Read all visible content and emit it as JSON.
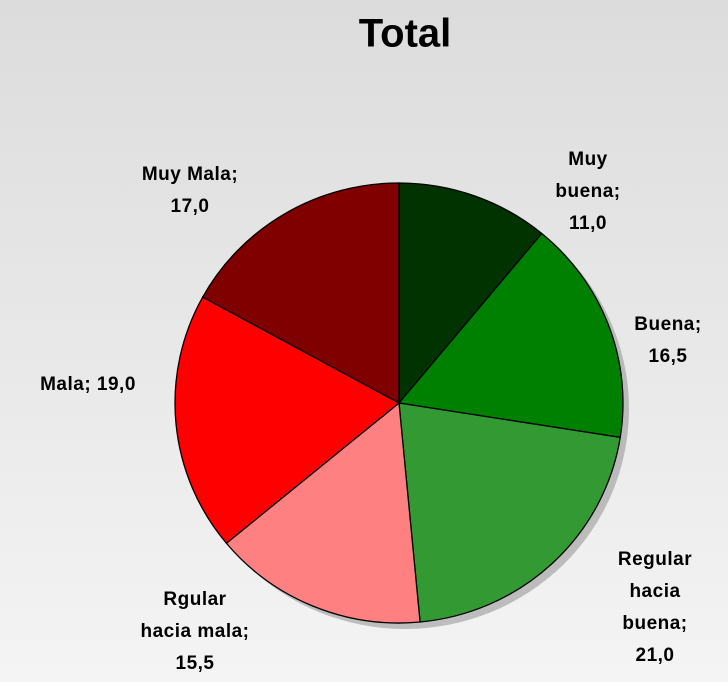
{
  "chart_data": {
    "type": "pie",
    "title": "Total",
    "values": [
      11.0,
      16.5,
      21.0,
      15.5,
      19.0,
      17.0
    ],
    "value_labels": [
      "Muy buena; 11,0",
      "Buena; 16,5",
      "Regular hacia buena; 21,0",
      "Rgular hacia mala; 15,5",
      "Mala; 19,0",
      "Muy Mala; 17,0"
    ],
    "colors": [
      "#003300",
      "#008000",
      "#339933",
      "#ff8080",
      "#ff0000",
      "#800000"
    ]
  }
}
